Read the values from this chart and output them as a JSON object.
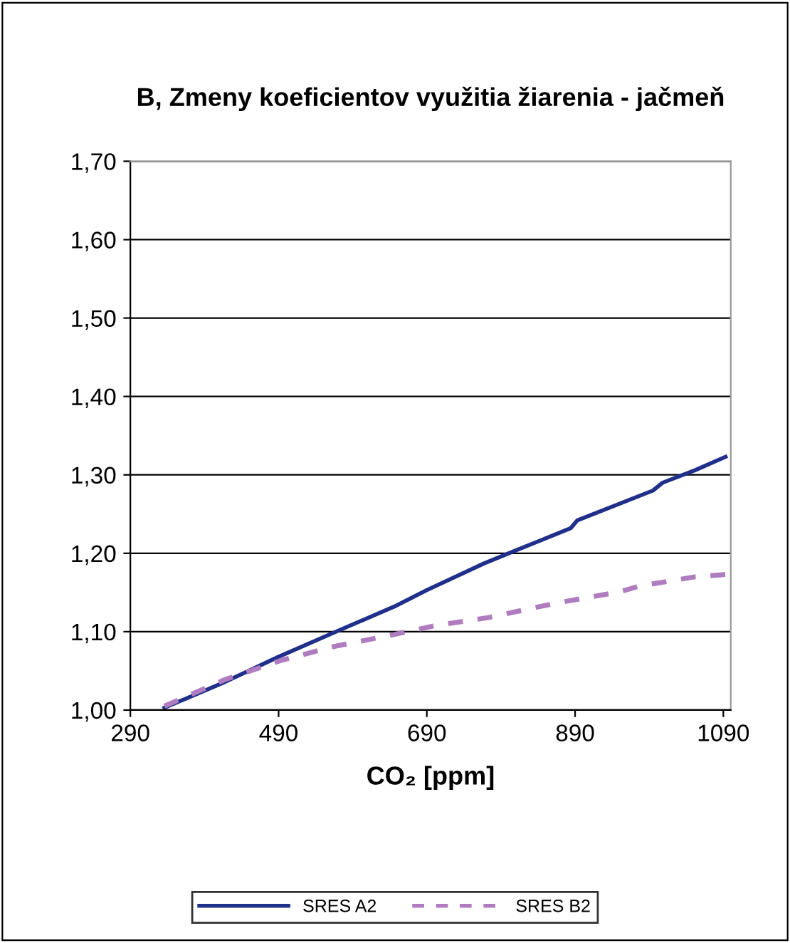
{
  "chart_data": {
    "type": "line",
    "title": "B, Zmeny koeficientov využitia žiarenia - jačmeň",
    "xlabel": "CO₂ [ppm]",
    "xlim": [
      290,
      1100
    ],
    "xticks": [
      290,
      490,
      690,
      890,
      1090
    ],
    "ylim": [
      1.0,
      1.7
    ],
    "yticks": [
      {
        "value": 1.0,
        "label": "1,00"
      },
      {
        "value": 1.1,
        "label": "1,10"
      },
      {
        "value": 1.2,
        "label": "1,20"
      },
      {
        "value": 1.3,
        "label": "1,30"
      },
      {
        "value": 1.4,
        "label": "1,40"
      },
      {
        "value": 1.5,
        "label": "1,50"
      },
      {
        "value": 1.6,
        "label": "1,60"
      },
      {
        "value": 1.7,
        "label": "1,70"
      }
    ],
    "grid": "y",
    "legend": "bottom",
    "marker": "none",
    "series": [
      {
        "name": "SRES A2",
        "color": "#1f2f8a",
        "line_style": "solid",
        "x": [
          336,
          418,
          490,
          570,
          646,
          690,
          767,
          811,
          884,
          893,
          995,
          1008,
          1052,
          1093
        ],
        "values": [
          1.003,
          1.036,
          1.068,
          1.101,
          1.132,
          1.153,
          1.187,
          1.204,
          1.232,
          1.242,
          1.28,
          1.29,
          1.306,
          1.323
        ]
      },
      {
        "name": "SRES B2",
        "color": "#b07cc0",
        "line_style": "dashed",
        "x": [
          336,
          418,
          492,
          564,
          634,
          703,
          773,
          862,
          951,
          976,
          1052,
          1093
        ],
        "values": [
          1.005,
          1.039,
          1.063,
          1.081,
          1.094,
          1.108,
          1.118,
          1.136,
          1.151,
          1.158,
          1.17,
          1.173
        ]
      }
    ]
  }
}
